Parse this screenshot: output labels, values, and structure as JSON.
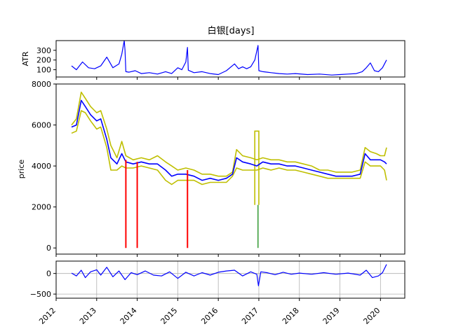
{
  "title": "白银[days]",
  "colors": {
    "atr": "#0000ff",
    "price": "#0000ff",
    "band": "#bfbf00",
    "up": "#008000",
    "down": "#ff0000",
    "osc": "#0000ff",
    "grid": "#b0b0b0"
  },
  "chart_data": [
    {
      "type": "line",
      "name": "atr-panel",
      "ylabel": "ATR",
      "xlim": [
        2012.0,
        2020.6
      ],
      "ylim": [
        25,
        400
      ],
      "yticks": [
        "100",
        "200",
        "300"
      ],
      "yticks_values": [
        100,
        200,
        300
      ],
      "series": [
        {
          "x": [
            2012.38,
            2012.5,
            2012.65,
            2012.8,
            2012.95,
            2013.1,
            2013.25,
            2013.4,
            2013.55,
            2013.62,
            2013.68,
            2013.7,
            2013.72,
            2013.8,
            2013.95,
            2014.1,
            2014.3,
            2014.5,
            2014.7,
            2014.85,
            2015.0,
            2015.1,
            2015.2,
            2015.24,
            2015.26,
            2015.4,
            2015.6,
            2015.8,
            2016.0,
            2016.2,
            2016.4,
            2016.5,
            2016.6,
            2016.7,
            2016.8,
            2016.9,
            2016.98,
            2017.0,
            2017.1,
            2017.3,
            2017.5,
            2017.7,
            2017.9,
            2018.2,
            2018.5,
            2018.8,
            2019.0,
            2019.2,
            2019.4,
            2019.55,
            2019.65,
            2019.75,
            2019.85,
            2019.95,
            2020.05,
            2020.15
          ],
          "y": [
            140,
            100,
            180,
            120,
            110,
            140,
            230,
            120,
            160,
            260,
            400,
            300,
            80,
            75,
            90,
            60,
            70,
            55,
            80,
            60,
            120,
            100,
            180,
            330,
            95,
            70,
            80,
            60,
            50,
            90,
            160,
            110,
            130,
            110,
            130,
            200,
            350,
            90,
            80,
            70,
            60,
            55,
            60,
            50,
            55,
            45,
            50,
            55,
            60,
            80,
            120,
            170,
            90,
            80,
            120,
            200
          ]
        }
      ]
    },
    {
      "type": "line",
      "name": "price-panel",
      "ylabel": "price",
      "xlim": [
        2012.0,
        2020.6
      ],
      "ylim": [
        -300,
        8000
      ],
      "yticks": [
        "0",
        "2000",
        "4000",
        "6000",
        "8000"
      ],
      "yticks_values": [
        0,
        2000,
        4000,
        6000,
        8000
      ],
      "series": [
        {
          "name": "upper",
          "x": [
            2012.38,
            2012.5,
            2012.62,
            2012.72,
            2012.85,
            2013.0,
            2013.1,
            2013.25,
            2013.35,
            2013.5,
            2013.62,
            2013.72,
            2013.9,
            2014.1,
            2014.3,
            2014.5,
            2014.7,
            2014.85,
            2015.0,
            2015.2,
            2015.4,
            2015.6,
            2015.8,
            2016.0,
            2016.2,
            2016.35,
            2016.45,
            2016.6,
            2016.8,
            2016.95,
            2017.1,
            2017.3,
            2017.5,
            2017.7,
            2017.9,
            2018.1,
            2018.3,
            2018.5,
            2018.7,
            2018.9,
            2019.1,
            2019.3,
            2019.5,
            2019.62,
            2019.75,
            2019.9,
            2020.0,
            2020.1,
            2020.15
          ],
          "y": [
            6000,
            6300,
            7600,
            7300,
            6900,
            6600,
            6700,
            5800,
            5000,
            4400,
            5200,
            4500,
            4300,
            4400,
            4300,
            4500,
            4200,
            4000,
            3800,
            3900,
            3800,
            3600,
            3600,
            3500,
            3500,
            3700,
            4800,
            4500,
            4400,
            4300,
            4400,
            4300,
            4300,
            4200,
            4200,
            4100,
            4000,
            3800,
            3800,
            3700,
            3700,
            3700,
            3800,
            4900,
            4700,
            4600,
            4500,
            4500,
            4900
          ]
        },
        {
          "name": "lower",
          "x": [
            2012.38,
            2012.5,
            2012.62,
            2012.72,
            2012.85,
            2013.0,
            2013.1,
            2013.25,
            2013.35,
            2013.5,
            2013.62,
            2013.72,
            2013.9,
            2014.1,
            2014.3,
            2014.5,
            2014.7,
            2014.85,
            2015.0,
            2015.2,
            2015.4,
            2015.6,
            2015.8,
            2016.0,
            2016.2,
            2016.35,
            2016.45,
            2016.6,
            2016.8,
            2016.95,
            2017.1,
            2017.3,
            2017.5,
            2017.7,
            2017.9,
            2018.1,
            2018.3,
            2018.5,
            2018.7,
            2018.9,
            2019.1,
            2019.3,
            2019.5,
            2019.62,
            2019.75,
            2019.9,
            2020.0,
            2020.1,
            2020.15
          ],
          "y": [
            5600,
            5700,
            6700,
            6600,
            6200,
            5800,
            5900,
            4900,
            3800,
            3800,
            4000,
            3900,
            3900,
            4000,
            3900,
            3800,
            3300,
            3100,
            3300,
            3300,
            3300,
            3100,
            3200,
            3200,
            3200,
            3500,
            3900,
            3800,
            3800,
            3800,
            3900,
            3800,
            3900,
            3800,
            3800,
            3700,
            3600,
            3500,
            3400,
            3400,
            3400,
            3400,
            3400,
            4200,
            4000,
            4000,
            4000,
            3800,
            3300
          ]
        },
        {
          "name": "price",
          "x": [
            2012.38,
            2012.5,
            2012.62,
            2012.72,
            2012.85,
            2013.0,
            2013.1,
            2013.25,
            2013.35,
            2013.5,
            2013.62,
            2013.72,
            2013.9,
            2014.1,
            2014.3,
            2014.5,
            2014.7,
            2014.85,
            2015.0,
            2015.2,
            2015.4,
            2015.6,
            2015.8,
            2016.0,
            2016.2,
            2016.35,
            2016.45,
            2016.6,
            2016.8,
            2016.95,
            2017.1,
            2017.3,
            2017.5,
            2017.7,
            2017.9,
            2018.1,
            2018.3,
            2018.5,
            2018.7,
            2018.9,
            2019.1,
            2019.3,
            2019.5,
            2019.62,
            2019.75,
            2019.9,
            2020.0,
            2020.1,
            2020.15
          ],
          "y": [
            5900,
            6000,
            7200,
            6900,
            6500,
            6200,
            6300,
            5300,
            4400,
            4100,
            4600,
            4200,
            4100,
            4200,
            4100,
            4100,
            3800,
            3500,
            3600,
            3600,
            3500,
            3300,
            3400,
            3300,
            3400,
            3600,
            4400,
            4200,
            4100,
            4000,
            4200,
            4100,
            4100,
            4000,
            4000,
            3900,
            3800,
            3700,
            3600,
            3500,
            3500,
            3500,
            3600,
            4600,
            4300,
            4300,
            4300,
            4200,
            4100
          ]
        }
      ],
      "down_spikes": [
        {
          "x": 2013.72,
          "y0": 4300,
          "y1": 0
        },
        {
          "x": 2014.0,
          "y0": 4200,
          "y1": 0
        },
        {
          "x": 2015.24,
          "y0": 3800,
          "y1": 0
        }
      ],
      "up_spikes": [
        {
          "x": 2016.98,
          "y0": 2100,
          "y1": 0
        }
      ],
      "band_spike": {
        "x0": 2016.9,
        "x1": 2017.0,
        "y_top": 5700,
        "y_bottom": 2100
      }
    },
    {
      "type": "line",
      "name": "oscillator-panel",
      "ylabel": "",
      "xlim": [
        2012.0,
        2020.6
      ],
      "ylim": [
        -600,
        300
      ],
      "yticks": [
        "−500",
        "0"
      ],
      "yticks_values": [
        -500,
        0
      ],
      "xticks": [
        "2012",
        "2013",
        "2014",
        "2015",
        "2016",
        "2017",
        "2018",
        "2019",
        "2020"
      ],
      "xticks_values": [
        2012,
        2013,
        2014,
        2015,
        2016,
        2017,
        2018,
        2019,
        2020
      ],
      "series": [
        {
          "x": [
            2012.38,
            2012.5,
            2012.62,
            2012.72,
            2012.85,
            2013.0,
            2013.1,
            2013.25,
            2013.4,
            2013.55,
            2013.7,
            2013.85,
            2014.0,
            2014.2,
            2014.4,
            2014.6,
            2014.8,
            2015.0,
            2015.2,
            2015.4,
            2015.6,
            2015.8,
            2016.0,
            2016.2,
            2016.4,
            2016.6,
            2016.8,
            2016.95,
            2016.99,
            2017.05,
            2017.2,
            2017.4,
            2017.6,
            2017.8,
            2018.0,
            2018.3,
            2018.6,
            2018.9,
            2019.2,
            2019.5,
            2019.65,
            2019.8,
            2019.95,
            2020.05,
            2020.15
          ],
          "y": [
            10,
            -60,
            80,
            -100,
            40,
            90,
            -40,
            150,
            -80,
            60,
            -150,
            20,
            -30,
            60,
            -40,
            -60,
            40,
            -120,
            30,
            -60,
            20,
            -40,
            30,
            60,
            80,
            -60,
            40,
            -20,
            -300,
            40,
            20,
            -30,
            30,
            -20,
            10,
            -20,
            20,
            -20,
            10,
            -40,
            80,
            -100,
            -60,
            20,
            220
          ]
        }
      ]
    }
  ]
}
